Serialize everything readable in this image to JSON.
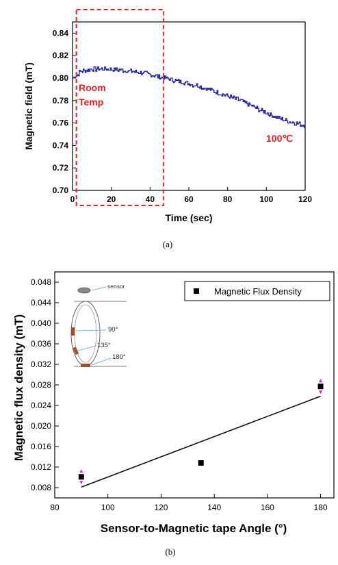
{
  "chart_data": [
    {
      "type": "line",
      "xlabel": "Time (sec)",
      "ylabel": "Magnetic field (mT)",
      "xlim": [
        0,
        120
      ],
      "ylim": [
        0.7,
        0.85
      ],
      "xticks": [
        "0",
        "20",
        "40",
        "60",
        "80",
        "100",
        "120"
      ],
      "yticks": [
        "0.70",
        "0.72",
        "0.74",
        "0.76",
        "0.78",
        "0.80",
        "0.82",
        "0.84"
      ],
      "series": [
        {
          "color": "#1f1fa0",
          "x": [
            0,
            2,
            4,
            10,
            20,
            25,
            30,
            35,
            40,
            45,
            50,
            55,
            60,
            65,
            70,
            75,
            80,
            85,
            90,
            95,
            100,
            105,
            110,
            115,
            120
          ],
          "y": [
            0.801,
            0.802,
            0.806,
            0.808,
            0.808,
            0.807,
            0.806,
            0.805,
            0.803,
            0.801,
            0.799,
            0.797,
            0.795,
            0.793,
            0.79,
            0.787,
            0.784,
            0.781,
            0.777,
            0.773,
            0.769,
            0.765,
            0.762,
            0.76,
            0.758
          ]
        }
      ],
      "annotations": {
        "room_temp": "Room\nTemp",
        "hot_label": "100℃",
        "region_x": [
          2,
          47
        ]
      },
      "caption": "(a)"
    },
    {
      "type": "scatter",
      "xlabel": "Sensor-to-Magnetic tape Angle (°)",
      "ylabel": "Magnetic flux density (mT)",
      "xlim": [
        80,
        185
      ],
      "ylim": [
        0.006,
        0.05
      ],
      "xticks": [
        "80",
        "100",
        "120",
        "140",
        "160",
        "180"
      ],
      "yticks": [
        "0.008",
        "0.012",
        "0.016",
        "0.020",
        "0.024",
        "0.028",
        "0.032",
        "0.036",
        "0.040",
        "0.044",
        "0.048"
      ],
      "series": [
        {
          "name": "Magnetic Flux Density",
          "color": "#000000",
          "x": [
            90,
            135,
            180
          ],
          "y": [
            0.0101,
            0.0128,
            0.0277
          ]
        }
      ],
      "fit_line": {
        "x": [
          90,
          180
        ],
        "y": [
          0.0081,
          0.0258
        ]
      },
      "error_color": "#e020e0",
      "inset_labels": {
        "sensor": "sensor",
        "a90": "90°",
        "a135": "135°",
        "a180": "180°"
      },
      "caption": "(b)"
    }
  ]
}
